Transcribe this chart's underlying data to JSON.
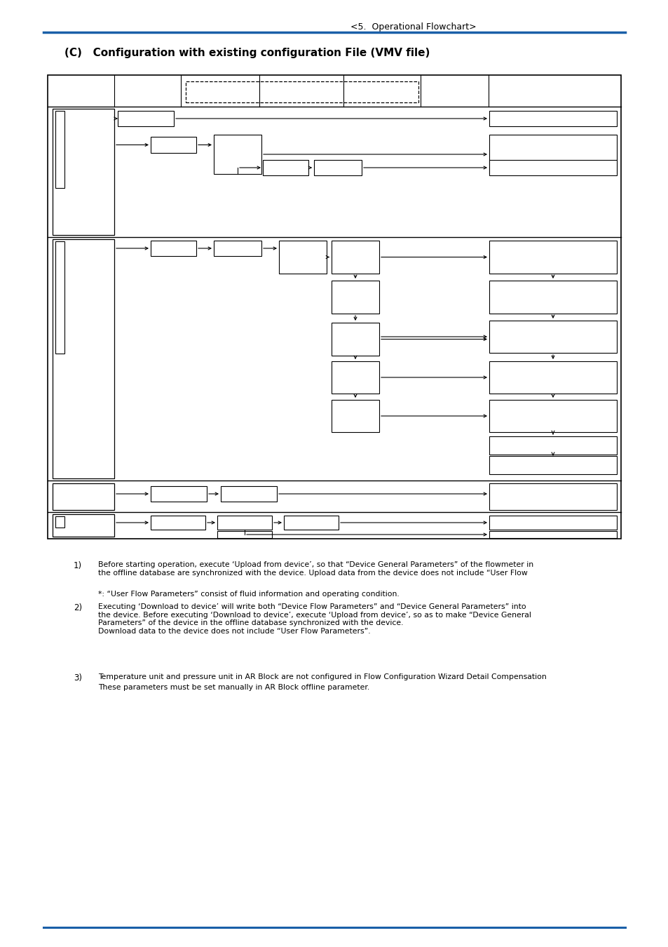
{
  "title_header": "<5.  Operational Flowchart>",
  "section_title": "(C)   Configuration with existing configuration File (VMV file)",
  "header_line_color": "#1a5fa8",
  "note1_label": "1)",
  "note1_text": "Before starting operation, execute ‘Upload from device’, so that “Device General Parameters” of the flowmeter in\nthe offline database are synchronized with the device. Upload data from the device does not include “User Flow",
  "note_star_text": "*: “User Flow Parameters” consist of fluid information and operating condition.",
  "note2_label": "2)",
  "note2_text": "Executing ‘Download to device’ will write both “Device Flow Parameters” and “Device General Parameters” into\nthe device. Before executing ‘Download to device’, execute ‘Upload from device’, so as to make “Device General\nParameters” of the device in the offline database synchronized with the device.\nDownload data to the device does not include “User Flow Parameters”.",
  "note3_label": "3)",
  "note3_text": "Temperature unit and pressure unit in AR Block are not configured in Flow Configuration Wizard Detail Compensation",
  "note3b_text": "These parameters must be set manually in AR Block offline parameter.",
  "bg_color": "#ffffff"
}
